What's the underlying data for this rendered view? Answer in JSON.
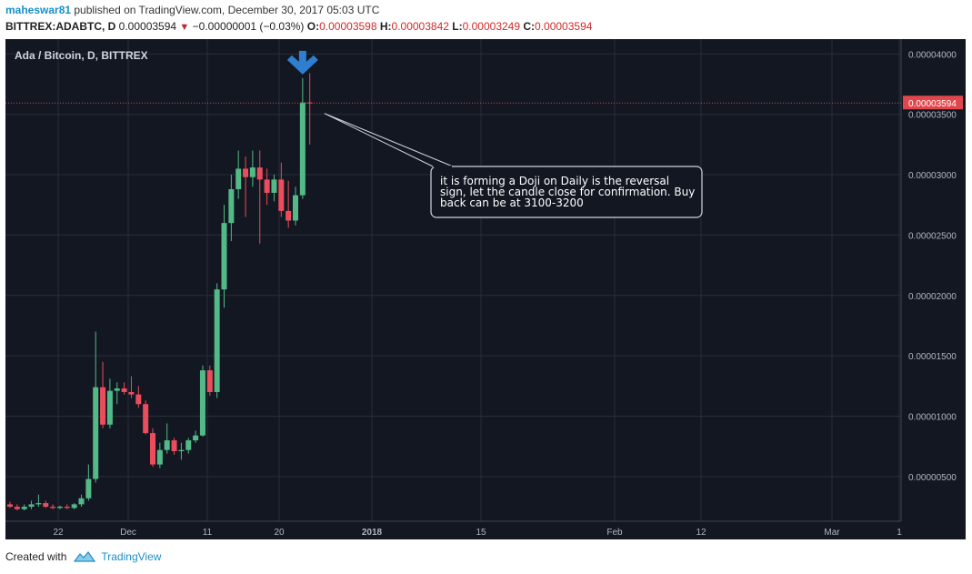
{
  "header": {
    "author": "maheswar81",
    "published": " published on TradingView.com, December 30, 2017 05:03 UTC",
    "symbol": "BITTREX:ADABTC, D",
    "price": "0.00003594",
    "change": "−0.00000001 (−0.03%)",
    "o_label": "O:",
    "o_value": "0.00003598",
    "h_label": "H:",
    "h_value": "0.00003842",
    "l_label": "L:",
    "l_value": "0.00003249",
    "c_label": "C:",
    "c_value": "0.00003594"
  },
  "footer": {
    "created_with": "Created with",
    "brand": "TradingView"
  },
  "colors": {
    "background": "#131722",
    "grid": "#2a2e39",
    "up": "#53b987",
    "down": "#eb4d5c",
    "price_line": "#e0474c",
    "arrow": "#2e7fd0"
  },
  "chart_data": {
    "type": "candlestick",
    "title": "Ada / Bitcoin, D, BITTREX",
    "ylim": [
      1.3e-06,
      4.123e-05
    ],
    "y_ticks": [
      "0.00000500",
      "0.00001000",
      "0.00001500",
      "0.00002000",
      "0.00002500",
      "0.00003000",
      "0.00003500",
      "0.00004000"
    ],
    "x_ticks": [
      "22",
      "Dec",
      "11",
      "20",
      "2018",
      "15",
      "Feb",
      "12",
      "Mar",
      "1"
    ],
    "last_price_label": "0.00003594",
    "annotation": "it is forming a Doji on Daily is the reversal sign, let the candle close for confirmation. Buy back can be at 3100-3200",
    "candles": [
      {
        "o": 2.7e-06,
        "h": 2.9e-06,
        "l": 2.4e-06,
        "c": 2.5e-06
      },
      {
        "o": 2.5e-06,
        "h": 2.7e-06,
        "l": 2.2e-06,
        "c": 2.3e-06
      },
      {
        "o": 2.3e-06,
        "h": 2.7e-06,
        "l": 2.2e-06,
        "c": 2.5e-06
      },
      {
        "o": 2.5e-06,
        "h": 3e-06,
        "l": 2.3e-06,
        "c": 2.7e-06
      },
      {
        "o": 2.7e-06,
        "h": 3.5e-06,
        "l": 2.5e-06,
        "c": 2.8e-06
      },
      {
        "o": 2.8e-06,
        "h": 3e-06,
        "l": 2.4e-06,
        "c": 2.5e-06
      },
      {
        "o": 2.5e-06,
        "h": 2.7e-06,
        "l": 2.3e-06,
        "c": 2.4e-06
      },
      {
        "o": 2.4e-06,
        "h": 2.6e-06,
        "l": 2.3e-06,
        "c": 2.5e-06
      },
      {
        "o": 2.5e-06,
        "h": 2.7e-06,
        "l": 2.3e-06,
        "c": 2.4e-06
      },
      {
        "o": 2.4e-06,
        "h": 2.8e-06,
        "l": 2.3e-06,
        "c": 2.7e-06
      },
      {
        "o": 2.7e-06,
        "h": 3.5e-06,
        "l": 2.5e-06,
        "c": 3.2e-06
      },
      {
        "o": 3.2e-06,
        "h": 6e-06,
        "l": 3e-06,
        "c": 4.8e-06
      },
      {
        "o": 4.8e-06,
        "h": 1.7e-05,
        "l": 4.5e-06,
        "c": 1.24e-05
      },
      {
        "o": 1.24e-05,
        "h": 1.45e-05,
        "l": 9e-06,
        "c": 9.3e-06
      },
      {
        "o": 9.3e-06,
        "h": 1.31e-05,
        "l": 9e-06,
        "c": 1.21e-05
      },
      {
        "o": 1.21e-05,
        "h": 1.28e-05,
        "l": 1.1e-05,
        "c": 1.23e-05
      },
      {
        "o": 1.23e-05,
        "h": 1.28e-05,
        "l": 1.18e-05,
        "c": 1.2e-05
      },
      {
        "o": 1.2e-05,
        "h": 1.33e-05,
        "l": 1.15e-05,
        "c": 1.18e-05
      },
      {
        "o": 1.18e-05,
        "h": 1.25e-05,
        "l": 1.07e-05,
        "c": 1.1e-05
      },
      {
        "o": 1.1e-05,
        "h": 1.13e-05,
        "l": 8.5e-06,
        "c": 8.6e-06
      },
      {
        "o": 8.6e-06,
        "h": 9e-06,
        "l": 5.8e-06,
        "c": 6e-06
      },
      {
        "o": 6e-06,
        "h": 7.8e-06,
        "l": 5.7e-06,
        "c": 7.2e-06
      },
      {
        "o": 7.2e-06,
        "h": 9.4e-06,
        "l": 6.9e-06,
        "c": 8e-06
      },
      {
        "o": 8e-06,
        "h": 8.2e-06,
        "l": 6.8e-06,
        "c": 7.1e-06
      },
      {
        "o": 7.1e-06,
        "h": 7.8e-06,
        "l": 6.4e-06,
        "c": 7.2e-06
      },
      {
        "o": 7.2e-06,
        "h": 8.2e-06,
        "l": 6.9e-06,
        "c": 8e-06
      },
      {
        "o": 8e-06,
        "h": 8.8e-06,
        "l": 7.8e-06,
        "c": 8.4e-06
      },
      {
        "o": 8.4e-06,
        "h": 1.42e-05,
        "l": 8.3e-06,
        "c": 1.38e-05
      },
      {
        "o": 1.38e-05,
        "h": 1.42e-05,
        "l": 1.17e-05,
        "c": 1.2e-05
      },
      {
        "o": 1.2e-05,
        "h": 2.1e-05,
        "l": 1.15e-05,
        "c": 2.05e-05
      },
      {
        "o": 2.05e-05,
        "h": 2.75e-05,
        "l": 1.9e-05,
        "c": 2.6e-05
      },
      {
        "o": 2.6e-05,
        "h": 3e-05,
        "l": 2.45e-05,
        "c": 2.88e-05
      },
      {
        "o": 2.88e-05,
        "h": 3.2e-05,
        "l": 2.8e-05,
        "c": 3.05e-05
      },
      {
        "o": 3.05e-05,
        "h": 3.15e-05,
        "l": 2.65e-05,
        "c": 2.98e-05
      },
      {
        "o": 2.98e-05,
        "h": 3.2e-05,
        "l": 2.9e-05,
        "c": 3.06e-05
      },
      {
        "o": 3.06e-05,
        "h": 3.2e-05,
        "l": 2.43e-05,
        "c": 2.96e-05
      },
      {
        "o": 2.96e-05,
        "h": 3.05e-05,
        "l": 2.75e-05,
        "c": 2.85e-05
      },
      {
        "o": 2.85e-05,
        "h": 3e-05,
        "l": 2.78e-05,
        "c": 2.96e-05
      },
      {
        "o": 2.96e-05,
        "h": 3.1e-05,
        "l": 2.65e-05,
        "c": 2.7e-05
      },
      {
        "o": 2.7e-05,
        "h": 2.95e-05,
        "l": 2.56e-05,
        "c": 2.62e-05
      },
      {
        "o": 2.62e-05,
        "h": 2.9e-05,
        "l": 2.58e-05,
        "c": 2.83e-05
      },
      {
        "o": 2.83e-05,
        "h": 3.8e-05,
        "l": 2.8e-05,
        "c": 3.598e-05
      },
      {
        "o": 3.598e-05,
        "h": 3.842e-05,
        "l": 3.249e-05,
        "c": 3.594e-05
      }
    ]
  }
}
